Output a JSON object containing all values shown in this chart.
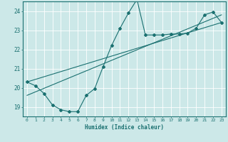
{
  "xlabel": "Humidex (Indice chaleur)",
  "ylabel": "",
  "bg_color": "#cce8e8",
  "grid_color": "#ffffff",
  "line_color": "#1a7070",
  "xlim": [
    -0.5,
    23.5
  ],
  "ylim": [
    18.5,
    24.5
  ],
  "xticks": [
    0,
    1,
    2,
    3,
    4,
    5,
    6,
    7,
    8,
    9,
    10,
    11,
    12,
    13,
    14,
    15,
    16,
    17,
    18,
    19,
    20,
    21,
    22,
    23
  ],
  "yticks": [
    19,
    20,
    21,
    22,
    23,
    24
  ],
  "curve1_x": [
    0,
    1,
    2,
    3,
    4,
    5,
    6,
    7,
    8,
    9,
    10,
    11,
    12,
    13,
    14,
    15,
    16,
    17,
    18,
    19,
    20,
    21,
    22,
    23
  ],
  "curve1_y": [
    20.3,
    20.1,
    19.7,
    19.1,
    18.85,
    18.75,
    18.75,
    19.6,
    19.95,
    21.1,
    22.2,
    23.1,
    23.9,
    24.6,
    22.75,
    22.75,
    22.75,
    22.8,
    22.8,
    22.85,
    23.1,
    23.8,
    23.95,
    23.4
  ],
  "line1_x": [
    0,
    23
  ],
  "line1_y": [
    19.6,
    23.8
  ],
  "line2_x": [
    0,
    23
  ],
  "line2_y": [
    20.3,
    23.4
  ]
}
